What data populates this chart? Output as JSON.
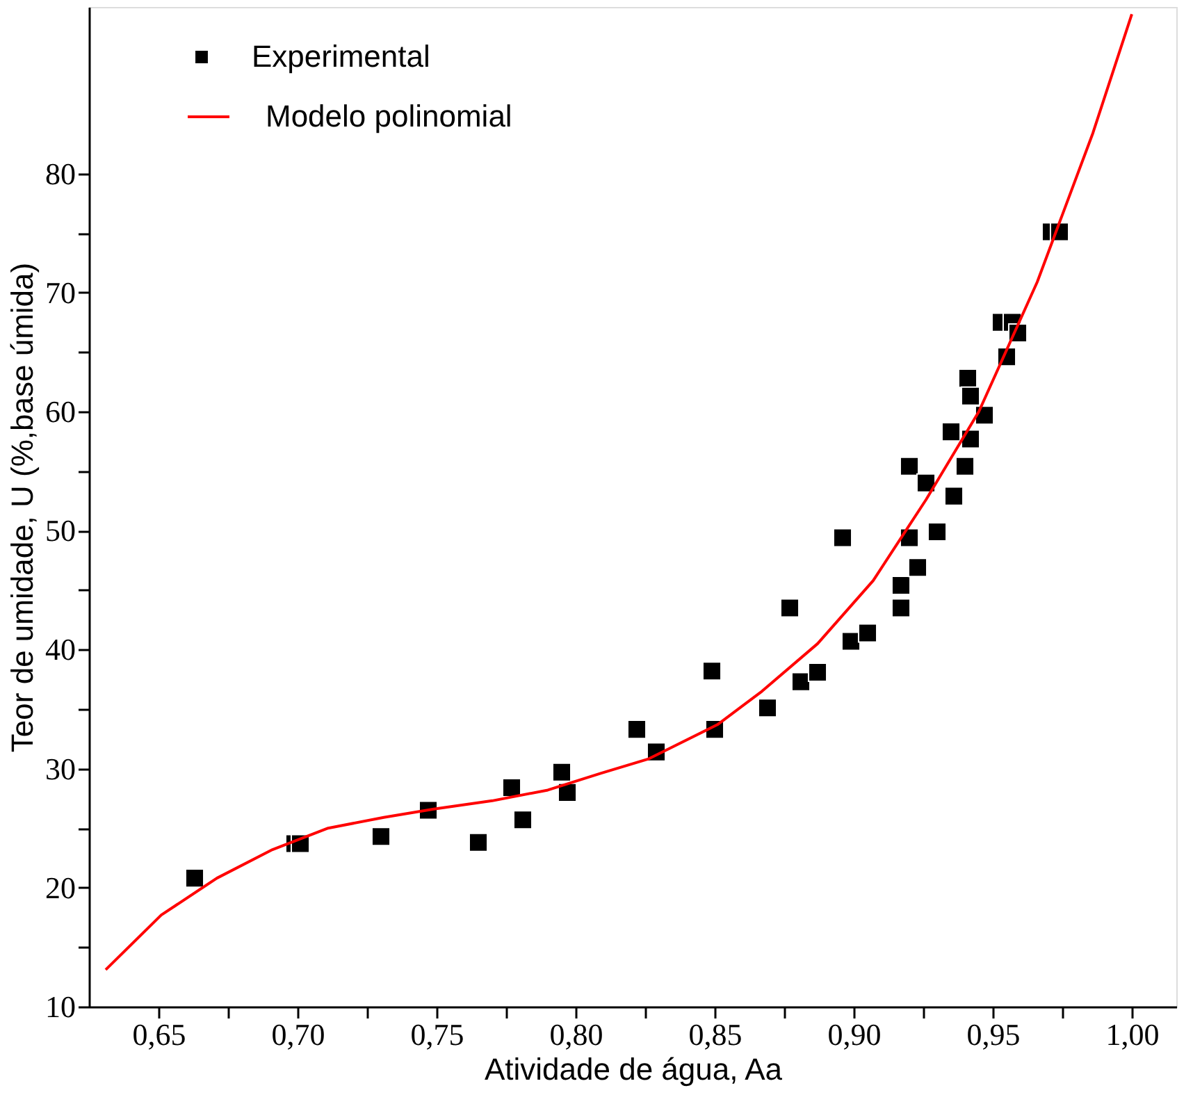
{
  "chart_data": {
    "type": "scatter",
    "xlabel": "Atividade de água, Aa",
    "ylabel": "Teor de umidade, U (%,base úmida)",
    "xlim": [
      0.625,
      1.016
    ],
    "ylim": [
      10,
      94
    ],
    "xticks": [
      {
        "value": 0.65,
        "label": "0,65"
      },
      {
        "value": 0.675,
        "label": null
      },
      {
        "value": 0.7,
        "label": "0,70"
      },
      {
        "value": 0.725,
        "label": null
      },
      {
        "value": 0.75,
        "label": "0,75"
      },
      {
        "value": 0.775,
        "label": null
      },
      {
        "value": 0.8,
        "label": "0,80"
      },
      {
        "value": 0.825,
        "label": null
      },
      {
        "value": 0.85,
        "label": "0,85"
      },
      {
        "value": 0.875,
        "label": null
      },
      {
        "value": 0.9,
        "label": "0,90"
      },
      {
        "value": 0.925,
        "label": null
      },
      {
        "value": 0.95,
        "label": "0,95"
      },
      {
        "value": 0.975,
        "label": null
      },
      {
        "value": 1.0,
        "label": "1,00"
      }
    ],
    "yticks": [
      10,
      {
        "value": 15,
        "label": null
      },
      20,
      {
        "value": 25,
        "label": null
      },
      30,
      {
        "value": 35,
        "label": null
      },
      40,
      {
        "value": 45,
        "label": null
      },
      50,
      {
        "value": 55,
        "label": null
      },
      60,
      {
        "value": 65,
        "label": null
      },
      70,
      {
        "value": 75,
        "label": null
      },
      80
    ],
    "grid": false,
    "legend": "top left",
    "series": [
      {
        "name": "Experimental",
        "marker": "square",
        "color": "#000000",
        "x": [
          0.663,
          0.699,
          0.701,
          0.73,
          0.747,
          0.765,
          0.777,
          0.781,
          0.795,
          0.797,
          0.822,
          0.829,
          0.849,
          0.85,
          0.869,
          0.877,
          0.881,
          0.887,
          0.896,
          0.899,
          0.905,
          0.917,
          0.917,
          0.92,
          0.923,
          0.92,
          0.926,
          0.93,
          0.936,
          0.935,
          0.94,
          0.942,
          0.941,
          0.942,
          0.947,
          0.955,
          0.953,
          0.957,
          0.959,
          0.971,
          0.974
        ],
        "values": [
          20.8,
          23.7,
          23.7,
          24.3,
          26.5,
          23.8,
          28.4,
          25.7,
          29.7,
          28.0,
          33.3,
          31.4,
          38.2,
          33.3,
          35.1,
          43.5,
          37.3,
          38.1,
          49.4,
          40.7,
          41.4,
          43.5,
          45.4,
          49.4,
          46.9,
          55.4,
          54.0,
          49.9,
          52.9,
          58.3,
          55.4,
          57.7,
          62.8,
          61.3,
          59.7,
          64.6,
          67.5,
          67.5,
          66.6,
          75.1,
          75.1
        ]
      },
      {
        "name": "Modelo polinomial",
        "type": "line",
        "marker": "none",
        "line_style": "solid",
        "color": "#ff0000",
        "x": [
          0.631,
          0.651,
          0.671,
          0.691,
          0.711,
          0.731,
          0.749,
          0.77,
          0.79,
          0.809,
          0.826,
          0.851,
          0.867,
          0.887,
          0.907,
          0.926,
          0.945,
          0.966,
          0.986,
          1.0
        ],
        "values": [
          13.1,
          17.7,
          20.8,
          23.2,
          25.0,
          25.9,
          26.6,
          27.3,
          28.2,
          29.6,
          30.8,
          33.7,
          36.5,
          40.5,
          45.8,
          52.6,
          60.0,
          70.9,
          83.4,
          93.4
        ]
      }
    ]
  }
}
